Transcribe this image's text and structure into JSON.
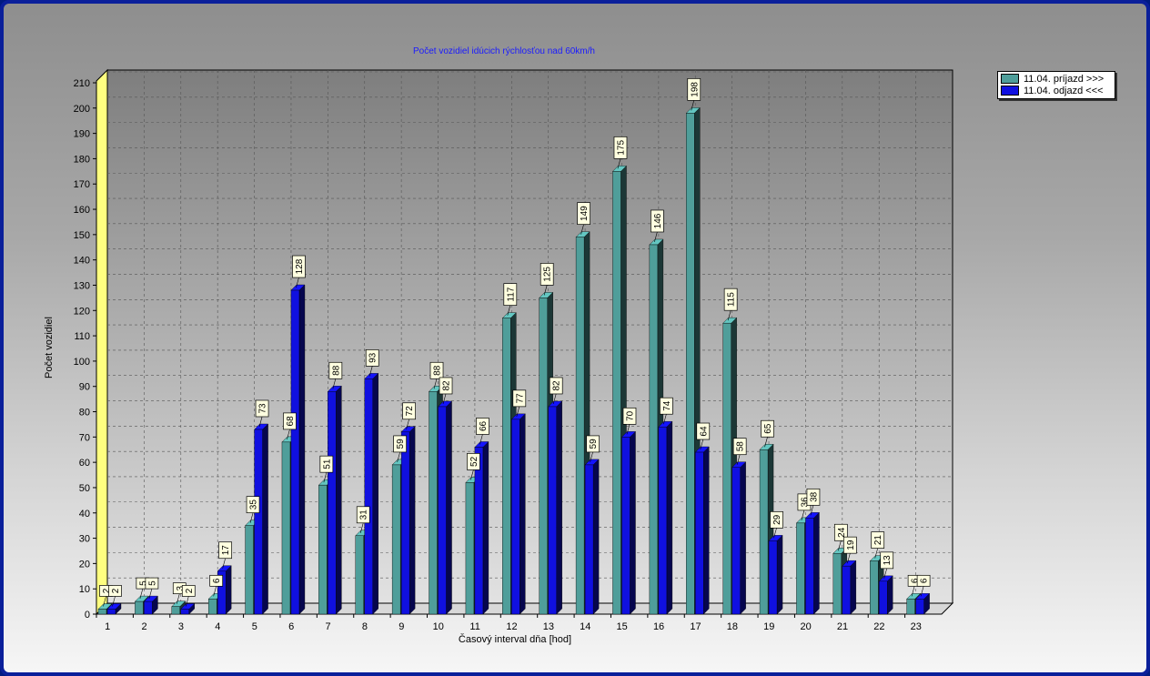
{
  "chart_data": {
    "type": "bar",
    "title": "Počet vozidiel idúcich rýchlosťou nad 60km/h",
    "xlabel": "Časový interval dňa [hod]",
    "ylabel": "Počet vozidiel",
    "ylim": [
      0,
      210
    ],
    "y_ticks": [
      "0",
      "10",
      "20",
      "30",
      "40",
      "50",
      "60",
      "70",
      "80",
      "90",
      "100",
      "110",
      "120",
      "130",
      "140",
      "150",
      "160",
      "170",
      "180",
      "190",
      "200",
      "210"
    ],
    "categories": [
      "1",
      "2",
      "3",
      "4",
      "5",
      "6",
      "7",
      "8",
      "9",
      "10",
      "11",
      "12",
      "13",
      "14",
      "15",
      "16",
      "17",
      "18",
      "19",
      "20",
      "21",
      "22",
      "23"
    ],
    "grid": true,
    "legend_position": "top-right",
    "series": [
      {
        "name": "11.04.  príjazd >>>",
        "color": "#4f9e9a",
        "values": [
          2,
          5,
          3,
          6,
          35,
          68,
          51,
          31,
          59,
          88,
          52,
          117,
          125,
          149,
          175,
          146,
          198,
          115,
          65,
          36,
          24,
          21,
          6
        ]
      },
      {
        "name": "11.04.  odjazd <<<",
        "color": "#1010e0",
        "values": [
          2,
          5,
          2,
          17,
          73,
          128,
          88,
          93,
          72,
          82,
          66,
          77,
          82,
          59,
          70,
          74,
          64,
          58,
          29,
          38,
          19,
          13,
          6
        ]
      }
    ]
  }
}
